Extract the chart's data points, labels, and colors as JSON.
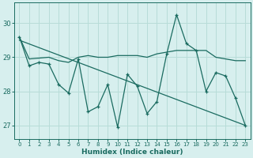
{
  "xlabel": "Humidex (Indice chaleur)",
  "bg_color": "#d7efee",
  "grid_color": "#b8dcd8",
  "line_color": "#1a6b60",
  "ylim": [
    26.6,
    30.6
  ],
  "xlim": [
    -0.5,
    23.5
  ],
  "yticks": [
    27,
    28,
    29,
    30
  ],
  "xticks": [
    0,
    1,
    2,
    3,
    4,
    5,
    6,
    7,
    8,
    9,
    10,
    11,
    12,
    13,
    14,
    15,
    16,
    17,
    18,
    19,
    20,
    21,
    22,
    23
  ],
  "series1_x": [
    0,
    1,
    2,
    3,
    4,
    5,
    6,
    7,
    8,
    9,
    10,
    11,
    12,
    13,
    14,
    15,
    16,
    17,
    18,
    19,
    20,
    21,
    22,
    23
  ],
  "series1_y": [
    29.6,
    28.75,
    28.85,
    28.8,
    28.2,
    27.95,
    28.95,
    27.4,
    27.55,
    28.2,
    26.95,
    28.5,
    28.15,
    27.35,
    27.7,
    29.1,
    30.25,
    29.4,
    29.2,
    28.0,
    28.55,
    28.45,
    27.8,
    27.0
  ],
  "series2_x": [
    0,
    1,
    3,
    4,
    5,
    6,
    7,
    8,
    9,
    10,
    11,
    12,
    13,
    14,
    15,
    16,
    17,
    18,
    19,
    20,
    21,
    22,
    23
  ],
  "series2_y": [
    29.6,
    28.95,
    29.0,
    28.9,
    28.85,
    29.0,
    29.05,
    29.0,
    29.0,
    29.05,
    29.05,
    29.05,
    29.0,
    29.1,
    29.15,
    29.2,
    29.2,
    29.2,
    29.2,
    29.0,
    28.95,
    28.9,
    28.9
  ],
  "trend_x": [
    0,
    23
  ],
  "trend_y": [
    29.5,
    27.0
  ]
}
